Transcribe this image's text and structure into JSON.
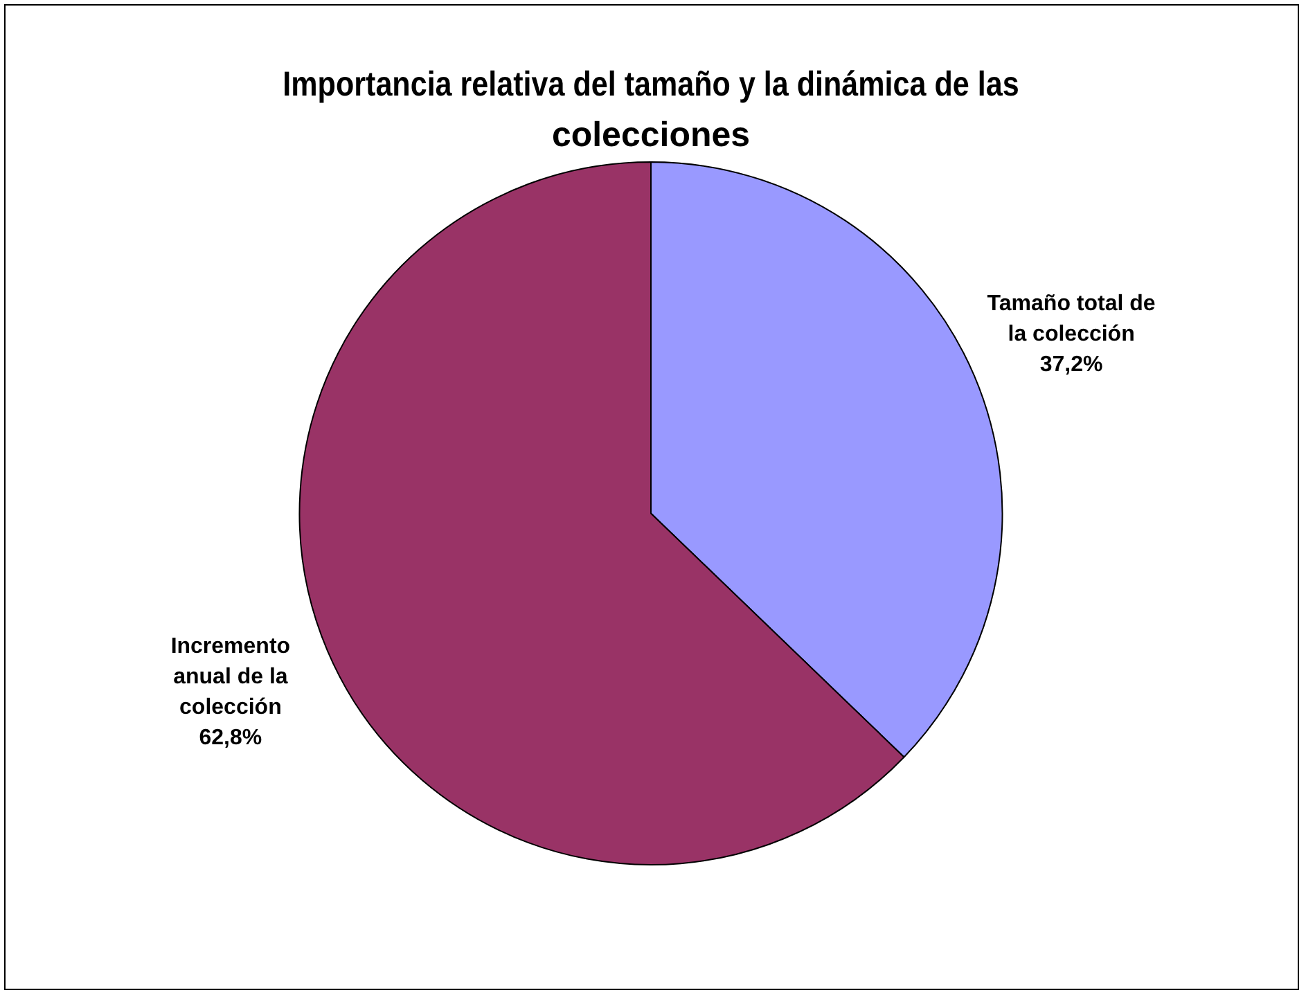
{
  "chart_data": {
    "type": "pie",
    "title": "Importancia relativa del tamaño y la dinámica de las colecciones",
    "categories": [
      "Tamaño total de la colección",
      "Incremento anual de la colección"
    ],
    "values": [
      37.2,
      62.8
    ],
    "value_labels": [
      "37,2%",
      "62,8%"
    ],
    "colors": [
      "#9999ff",
      "#993366"
    ],
    "legend": false
  }
}
